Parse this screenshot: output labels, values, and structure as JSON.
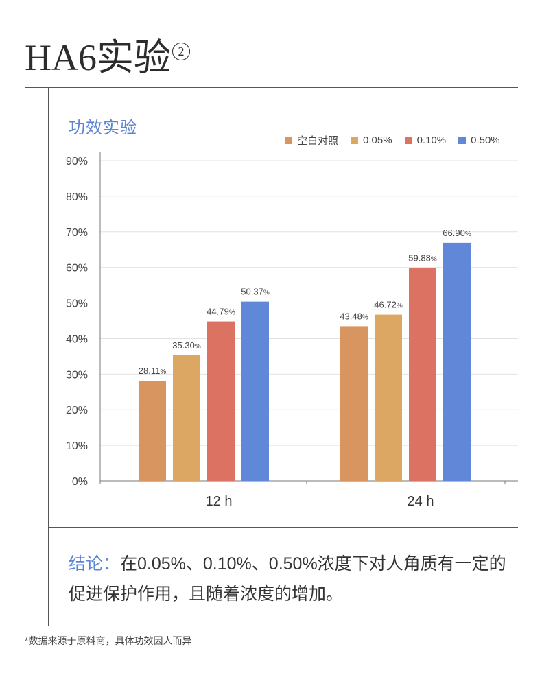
{
  "header": {
    "title": "HA6实验",
    "title_mark": "2"
  },
  "chart_data": {
    "type": "bar",
    "title": "功效实验",
    "categories": [
      "12 h",
      "24 h"
    ],
    "series": [
      {
        "name": "空白对照",
        "color": "#d89560",
        "values": [
          28.11,
          43.48
        ],
        "labels": [
          "28.11",
          "43.48"
        ]
      },
      {
        "name": "0.05%",
        "color": "#dba763",
        "values": [
          35.3,
          46.72
        ],
        "labels": [
          "35.30",
          "46.72"
        ]
      },
      {
        "name": "0.10%",
        "color": "#dc7362",
        "values": [
          44.79,
          59.88
        ],
        "labels": [
          "44.79",
          "59.88"
        ]
      },
      {
        "name": "0.50%",
        "color": "#6187d9",
        "values": [
          50.37,
          66.9
        ],
        "labels": [
          "50.37",
          "66.90"
        ]
      }
    ],
    "label_unit": "%",
    "yticks": [
      "0%",
      "10%",
      "20%",
      "30%",
      "40%",
      "50%",
      "60%",
      "70%",
      "80%",
      "90%"
    ],
    "ylim": [
      0,
      90
    ],
    "grid": true,
    "legend_position": "top-right"
  },
  "conclusion": {
    "label": "结论：",
    "text": "在0.05%、0.10%、0.50%浓度下对人角质有一定的促进保护作用，且随着浓度的增加。"
  },
  "footnote": "*数据来源于原料商，具体功效因人而异"
}
